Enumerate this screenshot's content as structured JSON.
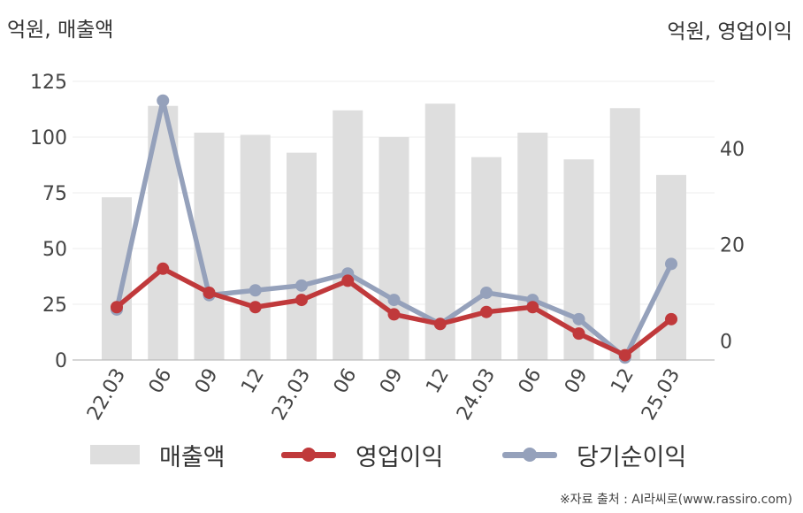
{
  "units": {
    "left": "억원, 매출액",
    "right": "억원, 영업이익"
  },
  "chart_data": {
    "type": "bar+line",
    "categories": [
      "22.03",
      "06",
      "09",
      "12",
      "23.03",
      "06",
      "09",
      "12",
      "24.03",
      "06",
      "09",
      "12",
      "25.03"
    ],
    "y_left": {
      "ticks": [
        0,
        25,
        50,
        75,
        100,
        125
      ],
      "range": [
        0,
        125
      ]
    },
    "y_right": {
      "ticks": [
        0,
        20,
        40
      ],
      "range": [
        -4,
        54
      ]
    },
    "grid": true,
    "legend_position": "bottom",
    "series": [
      {
        "name": "매출액",
        "kind": "bar",
        "axis": "left",
        "color": "#dedede",
        "values": [
          73,
          114,
          102,
          101,
          93,
          112,
          100,
          115,
          91,
          102,
          90,
          113,
          83
        ]
      },
      {
        "name": "영업이익",
        "kind": "line",
        "axis": "right",
        "color": "#c0393b",
        "values": [
          7,
          15,
          10,
          7,
          8.5,
          12.5,
          5.5,
          3.5,
          6,
          7,
          1.5,
          -3,
          4.5
        ]
      },
      {
        "name": "당기순이익",
        "kind": "line",
        "axis": "right",
        "color": "#95a1bb",
        "values": [
          6.5,
          50,
          9.5,
          10.5,
          11.5,
          14,
          8.5,
          3.5,
          10,
          8.5,
          4.5,
          -3.5,
          16
        ]
      }
    ]
  },
  "source": "※자료 출처 : AI라씨로(www.rassiro.com)"
}
